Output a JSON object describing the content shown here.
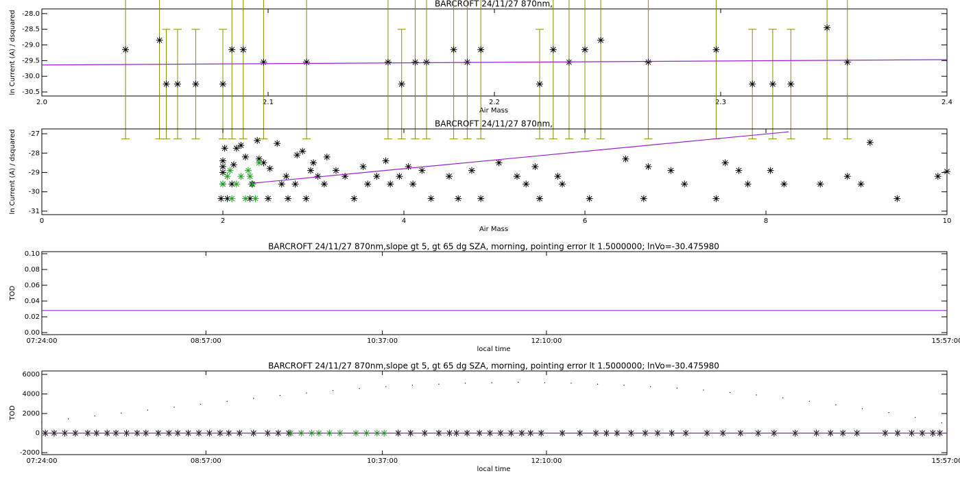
{
  "chart_data": [
    {
      "type": "scatter",
      "title": "BARCROFT 24/11/27 870nm,",
      "x_label": "Air Mass",
      "y_label": "ln Current (A) / dsquared",
      "xlim": [
        2.0,
        2.4
      ],
      "xticks": [
        {
          "value": 2,
          "label": "2.0"
        },
        2.1,
        2.2,
        2.3,
        2.4
      ],
      "ylim": [
        -30.63,
        -27.85
      ],
      "yticks": [
        {
          "value": -28,
          "label": "-28.0"
        },
        -28.5,
        {
          "value": -29,
          "label": "-29.0"
        },
        -29.5,
        {
          "value": -30,
          "label": "-30.0"
        },
        -30.5
      ],
      "series": [
        {
          "marker": "star",
          "color": "#000000",
          "error_color": "#8c8c00",
          "x": [
            2.037,
            2.052,
            2.055,
            2.06,
            2.068,
            2.08,
            2.084,
            2.089,
            2.098,
            2.117,
            2.153,
            2.159,
            2.165,
            2.17,
            2.182,
            2.188,
            2.194,
            2.22,
            2.226,
            2.233,
            2.24,
            2.247,
            2.268,
            2.298,
            2.314,
            2.323,
            2.331,
            2.347,
            2.356
          ],
          "values": [
            -29.15,
            -28.85,
            -30.25,
            -30.25,
            -30.25,
            -30.25,
            -29.15,
            -29.15,
            -29.55,
            -29.55,
            -29.55,
            -30.25,
            -29.55,
            -29.55,
            -29.15,
            -29.55,
            -29.15,
            -30.25,
            -29.15,
            -29.55,
            -29.15,
            -28.85,
            -29.55,
            -29.15,
            -30.25,
            -30.25,
            -30.25,
            -28.45,
            -29.55
          ],
          "errors": [
            2.85,
            3.15,
            1.75,
            1.75,
            1.75,
            1.75,
            2.85,
            2.85,
            2.45,
            2.45,
            2.45,
            1.75,
            2.45,
            2.45,
            2.85,
            2.45,
            2.85,
            1.75,
            2.85,
            2.45,
            2.85,
            3.15,
            2.45,
            2.85,
            1.75,
            1.75,
            1.75,
            3.55,
            2.45
          ]
        },
        {
          "marker": "line",
          "color": "#9a20d0",
          "x": [
            2.0,
            2.4
          ],
          "values": [
            -29.64,
            -29.47
          ]
        }
      ]
    },
    {
      "type": "scatter",
      "title": "BARCROFT 24/11/27 870nm,",
      "x_label": "Air Mass",
      "y_label": "ln Current (A) / dsquared",
      "xlim": [
        0,
        10
      ],
      "xticks": [
        0,
        2,
        4,
        6,
        8,
        10
      ],
      "ylim": [
        -31.18,
        -26.75
      ],
      "yticks": [
        -27,
        -28,
        -29,
        -30,
        -31
      ],
      "series": [
        {
          "marker": "star",
          "color": "#000000",
          "x": [
            1.98,
            2.0,
            2.0,
            2.0,
            2.0,
            2.02,
            2.05,
            2.1,
            2.12,
            2.15,
            2.2,
            2.25,
            2.3,
            2.32,
            2.38,
            2.4,
            2.45,
            2.5,
            2.52,
            2.6,
            2.65,
            2.7,
            2.72,
            2.8,
            2.82,
            2.88,
            2.92,
            2.97,
            3.0,
            3.05,
            3.12,
            3.15,
            3.25,
            3.35,
            3.45,
            3.55,
            3.6,
            3.7,
            3.8,
            3.85,
            3.95,
            4.05,
            4.1,
            4.2,
            4.3,
            4.5,
            4.6,
            4.75,
            4.85,
            5.05,
            5.25,
            5.35,
            5.45,
            5.5,
            5.7,
            5.75,
            6.05,
            6.45,
            6.65,
            6.7,
            6.95,
            7.1,
            7.45,
            7.55,
            7.7,
            7.8,
            8.05,
            8.2,
            8.6,
            8.9,
            9.05,
            9.15,
            9.45,
            9.9,
            10.0
          ],
          "values": [
            -30.35,
            -29.6,
            -29.0,
            -28.7,
            -28.4,
            -27.75,
            -30.35,
            -29.6,
            -28.6,
            -27.75,
            -27.6,
            -28.2,
            -30.35,
            -29.6,
            -27.35,
            -28.3,
            -28.5,
            -30.35,
            -28.8,
            -27.5,
            -29.6,
            -29.2,
            -30.35,
            -29.6,
            -28.1,
            -27.9,
            -30.35,
            -28.9,
            -28.5,
            -29.2,
            -29.6,
            -28.2,
            -28.9,
            -29.2,
            -30.35,
            -28.7,
            -29.6,
            -29.2,
            -28.4,
            -29.6,
            -29.2,
            -28.7,
            -29.6,
            -28.9,
            -30.35,
            -29.2,
            -30.35,
            -28.9,
            -30.35,
            -28.5,
            -29.2,
            -29.6,
            -28.7,
            -30.35,
            -29.2,
            -29.6,
            -30.35,
            -28.3,
            -30.35,
            -28.7,
            -28.9,
            -29.6,
            -30.35,
            -28.5,
            -28.9,
            -29.6,
            -28.9,
            -29.6,
            -29.6,
            -29.2,
            -29.6,
            -27.45,
            -30.35,
            -29.2,
            -28.95
          ]
        },
        {
          "marker": "star",
          "color": "#20a020",
          "x": [
            2.0,
            2.05,
            2.08,
            2.1,
            2.15,
            2.2,
            2.25,
            2.28,
            2.3,
            2.33,
            2.36,
            2.4
          ],
          "values": [
            -29.6,
            -29.2,
            -28.9,
            -30.35,
            -29.6,
            -29.2,
            -30.35,
            -28.9,
            -29.2,
            -29.6,
            -30.35,
            -28.5
          ]
        },
        {
          "marker": "line",
          "color": "#9a20d0",
          "x": [
            2.34,
            8.25
          ],
          "values": [
            -29.55,
            -26.9
          ]
        }
      ]
    },
    {
      "type": "scatter",
      "title": "BARCROFT 24/11/27 870nm,slope gt 5, gt 65 dg SZA, morning, pointing error lt 1.5000000; lnVo=-30.475980",
      "x_label": "local time",
      "y_label": "TOD",
      "xlim": [
        444,
        957
      ],
      "xticks": [
        {
          "value": 444,
          "label": "07:24:00"
        },
        {
          "value": 537,
          "label": "08:57:00"
        },
        {
          "value": 637,
          "label": "10:37:00"
        },
        {
          "value": 730,
          "label": "12:10:00"
        },
        {
          "value": 957,
          "label": "15:57:00"
        }
      ],
      "ylim": [
        -0.0026,
        0.1026
      ],
      "yticks": [
        {
          "value": 0,
          "label": "0.00"
        },
        {
          "value": 0.02,
          "label": "0.02"
        },
        {
          "value": 0.04,
          "label": "0.04"
        },
        {
          "value": 0.06,
          "label": "0.06"
        },
        {
          "value": 0.08,
          "label": "0.08"
        },
        {
          "value": 0.1,
          "label": "0.10"
        }
      ],
      "series": [
        {
          "marker": "line",
          "color": "#9a20d0",
          "x": [
            444,
            957
          ],
          "values": [
            0.028,
            0.028
          ]
        }
      ]
    },
    {
      "type": "scatter",
      "title": "BARCROFT 24/11/27 870nm,slope gt 5, gt 65 dg SZA, morning, pointing error lt 1.5000000; lnVo=-30.475980",
      "x_label": "local time",
      "y_label": "TOD",
      "xlim": [
        444,
        957
      ],
      "xticks": [
        {
          "value": 444,
          "label": "07:24:00"
        },
        {
          "value": 537,
          "label": "08:57:00"
        },
        {
          "value": 637,
          "label": "10:37:00"
        },
        {
          "value": 730,
          "label": "12:10:00"
        },
        {
          "value": 957,
          "label": "15:57:00"
        }
      ],
      "ylim": [
        -2200,
        6350
      ],
      "yticks": [
        -2000,
        0,
        2000,
        4000,
        6000
      ],
      "series": [
        {
          "marker": "dot",
          "color": "#000000",
          "x": [
            444,
            459,
            474,
            489,
            504,
            519,
            534,
            549,
            564,
            579,
            594,
            609,
            624,
            639,
            654,
            669,
            684,
            699,
            714,
            729,
            744,
            759,
            774,
            789,
            804,
            819,
            834,
            849,
            864,
            879,
            894,
            909,
            924,
            939,
            954
          ],
          "values": [
            1100,
            1450,
            1750,
            2050,
            2350,
            2650,
            2950,
            3250,
            3550,
            3850,
            4100,
            4350,
            4550,
            4750,
            4900,
            5000,
            5100,
            5150,
            5200,
            5150,
            5100,
            5000,
            4900,
            4750,
            4600,
            4400,
            4150,
            3900,
            3600,
            3250,
            2900,
            2500,
            2100,
            1600,
            1050
          ]
        },
        {
          "marker": "star",
          "color": "#000000",
          "x": [
            446,
            451,
            457,
            463,
            470,
            475,
            481,
            486,
            492,
            498,
            503,
            510,
            516,
            521,
            527,
            533,
            539,
            545,
            550,
            556,
            564,
            572,
            578,
            584,
            646,
            653,
            661,
            669,
            675,
            679,
            685,
            692,
            698,
            704,
            710,
            716,
            721,
            727,
            739,
            749,
            758,
            764,
            770,
            778,
            786,
            793,
            801,
            809,
            821,
            830,
            840,
            850,
            859,
            871,
            883,
            891,
            898,
            906,
            922,
            929,
            937,
            943,
            949,
            953
          ],
          "values": [
            0,
            0,
            0,
            0,
            0,
            0,
            0,
            0,
            0,
            0,
            0,
            0,
            0,
            0,
            0,
            0,
            0,
            0,
            0,
            0,
            0,
            0,
            0,
            0,
            0,
            0,
            0,
            0,
            0,
            0,
            0,
            0,
            0,
            0,
            0,
            0,
            0,
            0,
            0,
            0,
            0,
            0,
            0,
            0,
            0,
            0,
            0,
            0,
            0,
            0,
            0,
            0,
            0,
            0,
            0,
            0,
            0,
            0,
            0,
            0,
            0,
            0,
            0,
            0
          ]
        },
        {
          "marker": "star",
          "color": "#20a020",
          "x": [
            585,
            591,
            597,
            601,
            607,
            613,
            622,
            628,
            634,
            638
          ],
          "values": [
            0,
            0,
            0,
            0,
            0,
            0,
            0,
            0,
            0,
            0
          ]
        },
        {
          "marker": "line",
          "color": "#9a20d0",
          "x": [
            444,
            957
          ],
          "values": [
            0,
            0
          ]
        }
      ]
    }
  ]
}
